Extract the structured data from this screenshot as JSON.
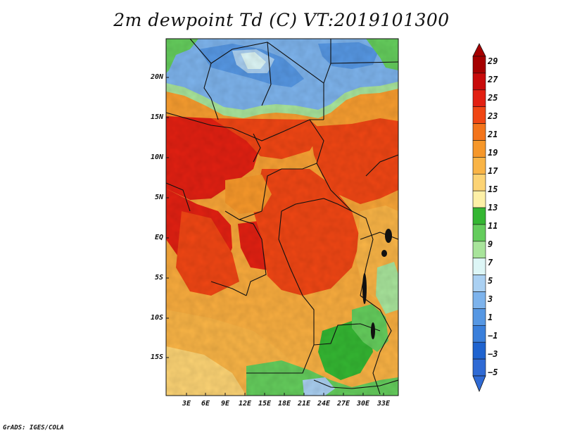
{
  "title": "2m dewpoint Td (C) VT:2019101300",
  "footer": "GrADS: IGES/COLA",
  "map": {
    "region": "Central Africa",
    "lat_labels": [
      "20N",
      "15N",
      "10N",
      "5N",
      "EQ",
      "5S",
      "10S",
      "15S"
    ],
    "lon_labels": [
      "3E",
      "6E",
      "9E",
      "12E",
      "15E",
      "18E",
      "21E",
      "24E",
      "27E",
      "30E",
      "33E"
    ]
  },
  "colorbar": {
    "labels": [
      "29",
      "27",
      "25",
      "23",
      "21",
      "19",
      "17",
      "15",
      "13",
      "11",
      "9",
      "7",
      "5",
      "3",
      "1",
      "−1",
      "−3",
      "−5"
    ],
    "colors": [
      "#a50000",
      "#c80a0a",
      "#e22012",
      "#f04614",
      "#f3741b",
      "#f6972a",
      "#f9b446",
      "#fcd374",
      "#fdf0a7",
      "#34b632",
      "#64cc5c",
      "#a8e49b",
      "#ddf6f6",
      "#aad0f2",
      "#7db3ec",
      "#5697e3",
      "#3a7fdb",
      "#1f63cf",
      "#2f6ad4"
    ]
  }
}
